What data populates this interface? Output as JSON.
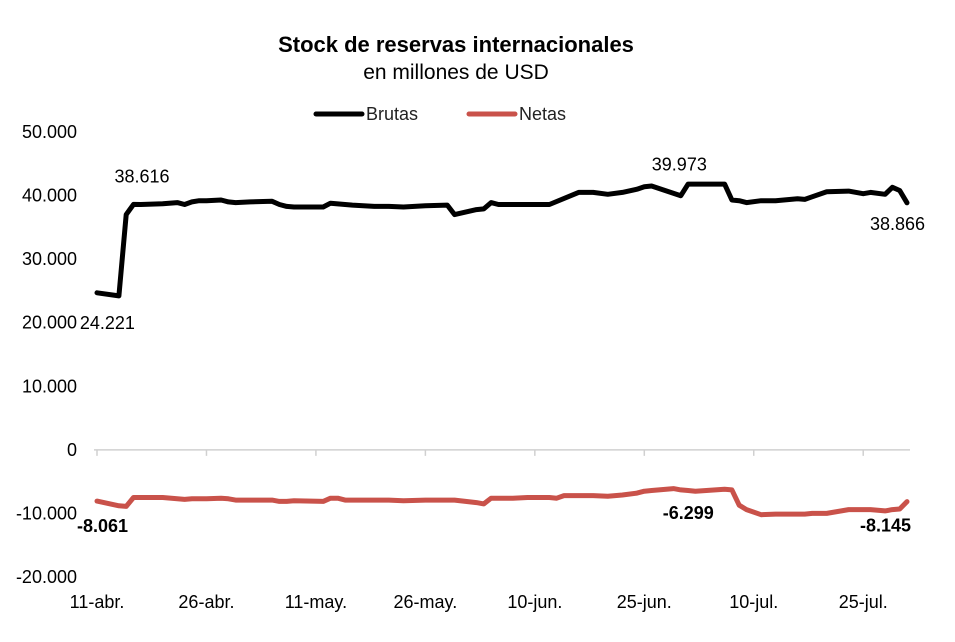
{
  "chart_data": {
    "type": "line",
    "title": "Stock de reservas internacionales",
    "subtitle": "en millones de USD",
    "xlabel": "",
    "ylabel": "",
    "ylim": [
      -20000,
      50000
    ],
    "yticks": [
      50000,
      40000,
      30000,
      20000,
      10000,
      0,
      -10000,
      -20000
    ],
    "ytick_labels": [
      "50.000",
      "40.000",
      "30.000",
      "20.000",
      "10.000",
      "0",
      "-10.000",
      "-20.000"
    ],
    "xticks": [
      0,
      15,
      30,
      45,
      60,
      75,
      90,
      105
    ],
    "xtick_labels": [
      "11-abr.",
      "26-abr.",
      "11-may.",
      "26-may.",
      "10-jun.",
      "25-jun.",
      "10-jul.",
      "25-jul."
    ],
    "x_range": [
      0,
      111
    ],
    "legend": [
      "Brutas",
      "Netas"
    ],
    "series": [
      {
        "name": "Brutas",
        "color": "#000000",
        "x": [
          0,
          3,
          4,
          5,
          6,
          9,
          11,
          12,
          13,
          14,
          15,
          17,
          18,
          19,
          21,
          24,
          25,
          26,
          27,
          31,
          32,
          35,
          38,
          40,
          42,
          45,
          48,
          49,
          52,
          53,
          54,
          55,
          57,
          59,
          62,
          66,
          67,
          68,
          70,
          72,
          74,
          75,
          76,
          80,
          81,
          82,
          86,
          87,
          88,
          89,
          91,
          93,
          96,
          97,
          98,
          100,
          103,
          105,
          106,
          108,
          109,
          110,
          111
        ],
        "values": [
          24700,
          24221,
          37000,
          38616,
          38600,
          38700,
          38900,
          38600,
          39000,
          39200,
          39200,
          39300,
          39000,
          38900,
          39000,
          39100,
          38600,
          38300,
          38200,
          38200,
          38800,
          38500,
          38300,
          38300,
          38200,
          38400,
          38500,
          37000,
          37800,
          37900,
          38900,
          38600,
          38600,
          38600,
          38600,
          40500,
          40500,
          40500,
          40200,
          40500,
          41000,
          41400,
          41500,
          39973,
          41800,
          41800,
          41800,
          39300,
          39200,
          38900,
          39200,
          39200,
          39500,
          39400,
          39800,
          40600,
          40700,
          40300,
          40500,
          40200,
          41300,
          40800,
          38866
        ]
      },
      {
        "name": "Netas",
        "color": "#C9524A",
        "x": [
          0,
          3,
          4,
          5,
          6,
          9,
          11,
          12,
          13,
          14,
          15,
          17,
          18,
          19,
          21,
          24,
          25,
          26,
          27,
          31,
          32,
          33,
          34,
          35,
          38,
          40,
          42,
          45,
          48,
          49,
          52,
          53,
          54,
          55,
          57,
          59,
          62,
          63,
          64,
          66,
          67,
          68,
          70,
          72,
          74,
          75,
          76,
          77,
          79,
          80,
          81,
          82,
          86,
          87,
          88,
          89,
          91,
          93,
          96,
          97,
          98,
          100,
          103,
          105,
          106,
          108,
          109,
          110,
          111
        ],
        "values": [
          -8061,
          -8800,
          -8900,
          -7500,
          -7500,
          -7500,
          -7700,
          -7800,
          -7700,
          -7700,
          -7700,
          -7600,
          -7700,
          -7900,
          -7900,
          -7900,
          -8100,
          -8100,
          -8000,
          -8100,
          -7600,
          -7600,
          -7900,
          -7900,
          -7900,
          -7900,
          -8000,
          -7900,
          -7900,
          -7900,
          -8300,
          -8500,
          -7600,
          -7600,
          -7600,
          -7500,
          -7500,
          -7600,
          -7200,
          -7200,
          -7200,
          -7200,
          -7300,
          -7100,
          -6800,
          -6500,
          -6400,
          -6300,
          -6100,
          -6299,
          -6400,
          -6500,
          -6200,
          -6300,
          -8700,
          -9400,
          -10200,
          -10100,
          -10100,
          -10100,
          -10000,
          -10000,
          -9400,
          -9400,
          -9400,
          -9600,
          -9400,
          -9300,
          -8145
        ]
      }
    ],
    "annotations": [
      {
        "text": "24.221",
        "series": "Brutas",
        "x": 3,
        "y": 24221,
        "bold": false
      },
      {
        "text": "38.616",
        "series": "Brutas",
        "x": 5,
        "y": 38616,
        "bold": false
      },
      {
        "text": "39.973",
        "series": "Brutas",
        "x": 80,
        "y": 39973,
        "bold": false
      },
      {
        "text": "38.866",
        "series": "Brutas",
        "x": 111,
        "y": 38866,
        "bold": false
      },
      {
        "text": "-8.061",
        "series": "Netas",
        "x": 0,
        "y": -8061,
        "bold": true
      },
      {
        "text": "-6.299",
        "series": "Netas",
        "x": 80,
        "y": -6299,
        "bold": true
      },
      {
        "text": "-8.145",
        "series": "Netas",
        "x": 111,
        "y": -8145,
        "bold": true
      }
    ]
  }
}
